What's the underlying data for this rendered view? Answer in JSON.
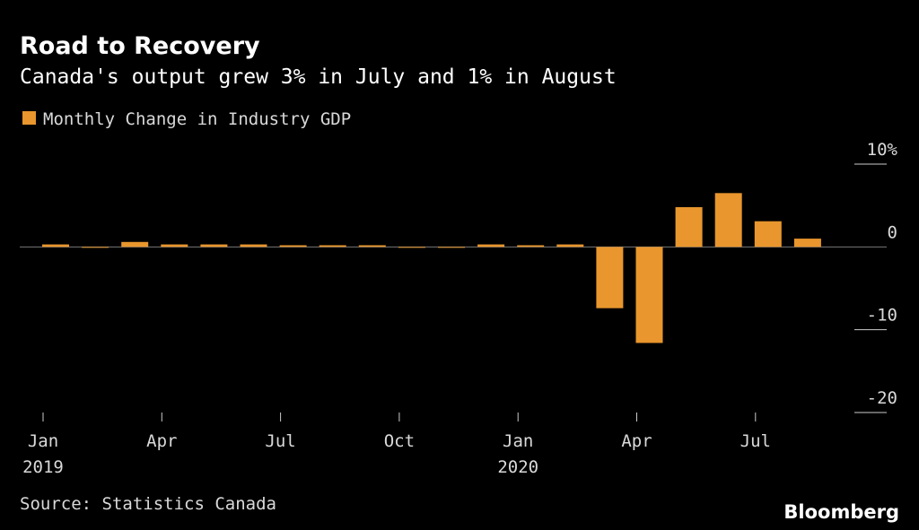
{
  "chart_data": {
    "type": "bar",
    "title": "Road to Recovery",
    "subtitle": "Canada's output grew 3% in July and 1% in August",
    "legend": "Monthly Change in Industry GDP",
    "source": "Source: Statistics Canada",
    "brand": "Bloomberg",
    "color": "#e8962d",
    "categories": [
      "Jan 2019",
      null,
      null,
      "Apr",
      null,
      null,
      "Jul",
      null,
      null,
      "Oct",
      null,
      null,
      "Jan 2020",
      null,
      null,
      "Apr",
      null,
      null,
      "Jul",
      null
    ],
    "values": [
      0.3,
      -0.1,
      0.6,
      0.3,
      0.3,
      0.3,
      0.2,
      0.2,
      0.2,
      -0.1,
      -0.1,
      0.3,
      0.2,
      0.3,
      -7.4,
      -11.6,
      4.8,
      6.5,
      3.1,
      1.0
    ],
    "ylim": [
      -20,
      10
    ],
    "yticks": [
      {
        "value": 10,
        "label": "10%"
      },
      0,
      -10,
      -20
    ]
  }
}
